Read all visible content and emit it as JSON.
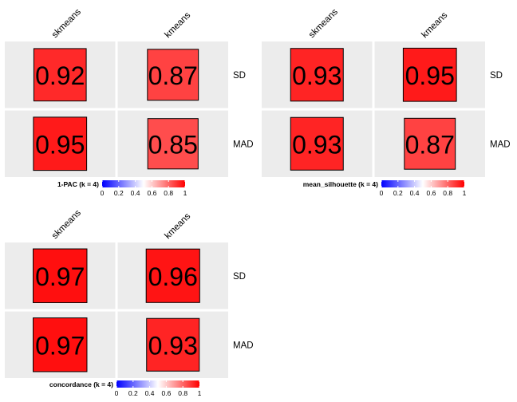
{
  "chart_data": [
    {
      "type": "heatmap",
      "columns": [
        "skmeans",
        "kmeans"
      ],
      "rows": [
        "SD",
        "MAD"
      ],
      "values": [
        [
          0.92,
          0.87
        ],
        [
          0.95,
          0.85
        ]
      ],
      "value_labels": [
        [
          "0.92",
          "0.87"
        ],
        [
          "0.95",
          "0.85"
        ]
      ],
      "legend": {
        "title": "1-PAC (k = 4)",
        "ticks": [
          "0",
          "0.2",
          "0.4",
          "0.6",
          "0.8",
          "1"
        ],
        "range": [
          0,
          1
        ]
      }
    },
    {
      "type": "heatmap",
      "columns": [
        "skmeans",
        "kmeans"
      ],
      "rows": [
        "SD",
        "MAD"
      ],
      "values": [
        [
          0.93,
          0.95
        ],
        [
          0.93,
          0.87
        ]
      ],
      "value_labels": [
        [
          "0.93",
          "0.95"
        ],
        [
          "0.93",
          "0.87"
        ]
      ],
      "legend": {
        "title": "mean_silhouette (k = 4)",
        "ticks": [
          "0",
          "0.2",
          "0.4",
          "0.6",
          "0.8",
          "1"
        ],
        "range": [
          0,
          1
        ]
      }
    },
    {
      "type": "heatmap",
      "columns": [
        "skmeans",
        "kmeans"
      ],
      "rows": [
        "SD",
        "MAD"
      ],
      "values": [
        [
          0.97,
          0.96
        ],
        [
          0.97,
          0.93
        ]
      ],
      "value_labels": [
        [
          "0.97",
          "0.96"
        ],
        [
          "0.97",
          "0.93"
        ]
      ],
      "legend": {
        "title": "concordance (k = 4)",
        "ticks": [
          "0",
          "0.2",
          "0.4",
          "0.6",
          "0.8",
          "1"
        ],
        "range": [
          0,
          1
        ]
      }
    }
  ],
  "colors": {
    "panel_bg": "#ececec",
    "scale_low": "#0000ff",
    "scale_mid": "#ffffff",
    "scale_high": "#ff0000",
    "cell_border": "#000000"
  }
}
